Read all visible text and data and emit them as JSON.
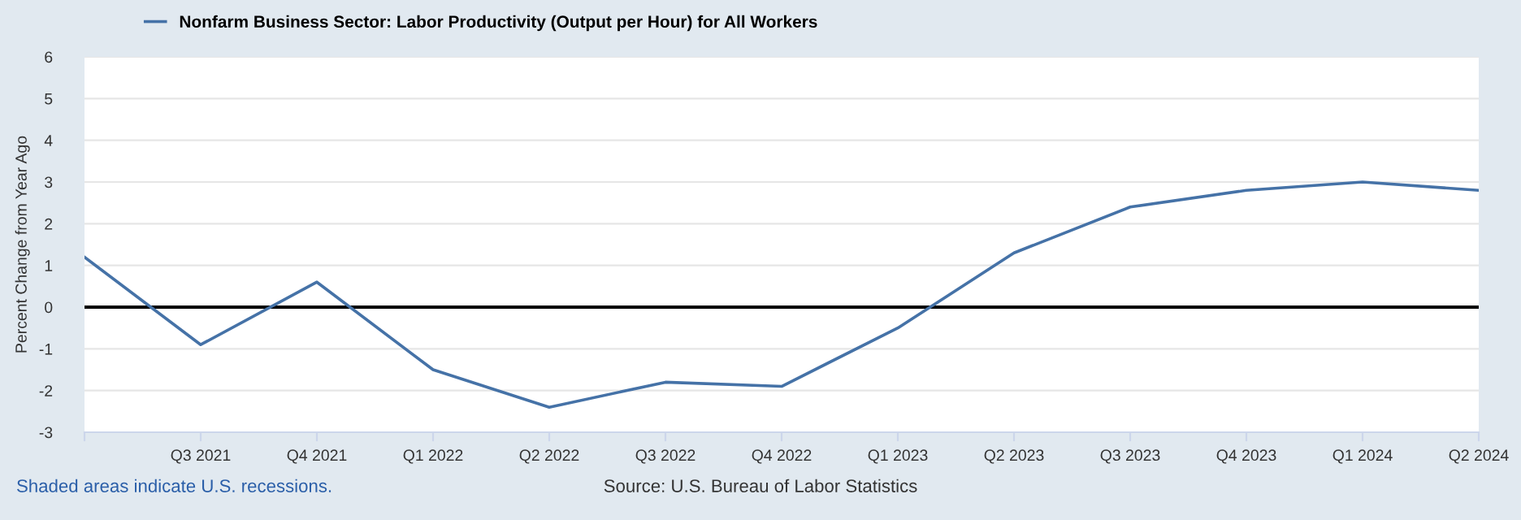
{
  "chart_data": {
    "type": "line",
    "ylabel": "Percent Change from Year Ago",
    "categories": [
      null,
      "Q3 2021",
      "Q4 2021",
      "Q1 2022",
      "Q2 2022",
      "Q3 2022",
      "Q4 2022",
      "Q1 2023",
      "Q2 2023",
      "Q3 2023",
      "Q4 2023",
      "Q1 2024",
      "Q2 2024"
    ],
    "series": [
      {
        "name": "Nonfarm Business Sector: Labor Productivity (Output per Hour) for All Workers",
        "color": "#4572a7",
        "values": [
          1.2,
          -0.9,
          0.6,
          -1.5,
          -2.4,
          -1.8,
          -1.9,
          -0.5,
          1.3,
          2.4,
          2.8,
          3.0,
          2.8
        ]
      }
    ],
    "ylim": [
      -3,
      6
    ],
    "yticks": [
      -3,
      -2,
      -1,
      0,
      1,
      2,
      3,
      4,
      5,
      6
    ],
    "grid": "y",
    "legend": "top left",
    "marker": "none",
    "line_style": "solid",
    "ref_lines": [
      {
        "axis": "y",
        "value": 0,
        "color": "#000000"
      }
    ],
    "annotations": [
      "Shaded areas indicate U.S. recessions.",
      "Source: U.S. Bureau of Labor Statistics"
    ]
  }
}
